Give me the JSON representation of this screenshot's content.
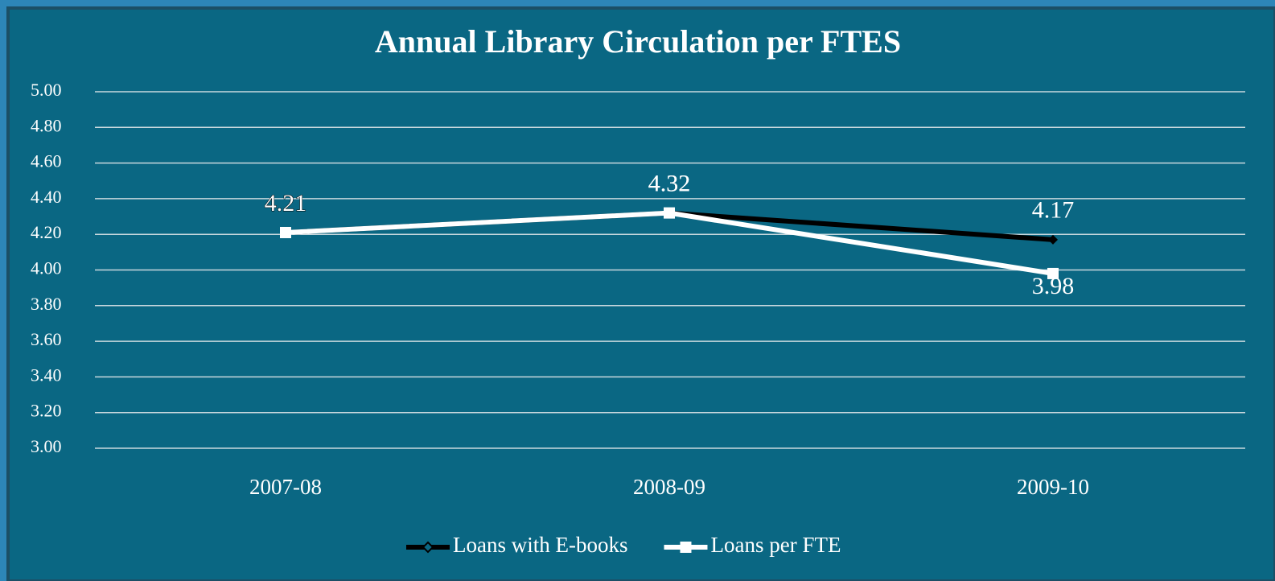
{
  "chart_data": {
    "type": "line",
    "title": "Annual Library Circulation per FTES",
    "categories": [
      "2007-08",
      "2008-09",
      "2009-10"
    ],
    "series": [
      {
        "name": "Loans with E-books",
        "color": "#000000",
        "marker": "diamond",
        "values": [
          4.21,
          4.32,
          4.17
        ]
      },
      {
        "name": "Loans per FTE",
        "color": "#ffffff",
        "marker": "square",
        "values": [
          4.21,
          4.32,
          3.98
        ]
      }
    ],
    "ylim": [
      3.0,
      5.0
    ],
    "yticks": [
      {
        "value": 3.0,
        "label": "3.00"
      },
      {
        "value": 3.2,
        "label": "3.20"
      },
      {
        "value": 3.4,
        "label": "3.40"
      },
      {
        "value": 3.6,
        "label": "3.60"
      },
      {
        "value": 3.8,
        "label": "3.80"
      },
      {
        "value": 4.0,
        "label": "4.00"
      },
      {
        "value": 4.2,
        "label": "4.20"
      },
      {
        "value": 4.4,
        "label": "4.40"
      },
      {
        "value": 4.6,
        "label": "4.60"
      },
      {
        "value": 4.8,
        "label": "4.80"
      },
      {
        "value": 5.0,
        "label": "5.00"
      }
    ],
    "grid": true,
    "legend": "bottom"
  }
}
